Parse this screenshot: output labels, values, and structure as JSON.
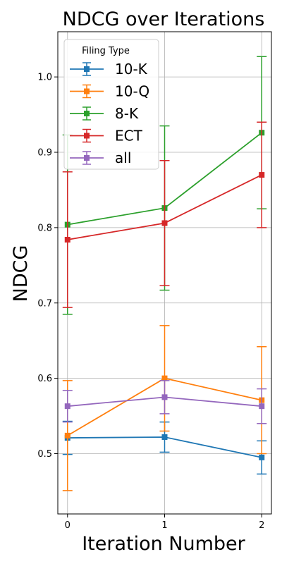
{
  "chart_data": {
    "type": "line",
    "title": "NDCG over Iterations",
    "xlabel": "Iteration Number",
    "ylabel": "NDCG",
    "x": [
      0,
      1,
      2
    ],
    "xlim": [
      -0.1,
      2.1
    ],
    "ylim": [
      0.42,
      1.06
    ],
    "xticks": [
      "0",
      "1",
      "2"
    ],
    "yticks": [
      "0.5",
      "0.6",
      "0.7",
      "0.8",
      "0.9",
      "1.0"
    ],
    "ytick_values": [
      0.5,
      0.6,
      0.7,
      0.8,
      0.9,
      1.0
    ],
    "grid": true,
    "legend": {
      "title": "Filing Type",
      "placement": "top-left"
    },
    "series": [
      {
        "name": "10-K",
        "color": "#1f77b4",
        "values": [
          0.521,
          0.522,
          0.495
        ],
        "errors": [
          0.022,
          0.02,
          0.022
        ]
      },
      {
        "name": "10-Q",
        "color": "#ff7f0e",
        "values": [
          0.524,
          0.6,
          0.571
        ],
        "errors": [
          0.073,
          0.07,
          0.071
        ]
      },
      {
        "name": "8-K",
        "color": "#2ca02c",
        "values": [
          0.804,
          0.826,
          0.926
        ],
        "errors": [
          0.119,
          0.109,
          0.101
        ]
      },
      {
        "name": "ECT",
        "color": "#d62728",
        "values": [
          0.784,
          0.806,
          0.87
        ],
        "errors": [
          0.09,
          0.083,
          0.07
        ]
      },
      {
        "name": "all",
        "color": "#9467bd",
        "values": [
          0.563,
          0.575,
          0.563
        ],
        "errors": [
          0.021,
          0.022,
          0.023
        ]
      }
    ]
  }
}
